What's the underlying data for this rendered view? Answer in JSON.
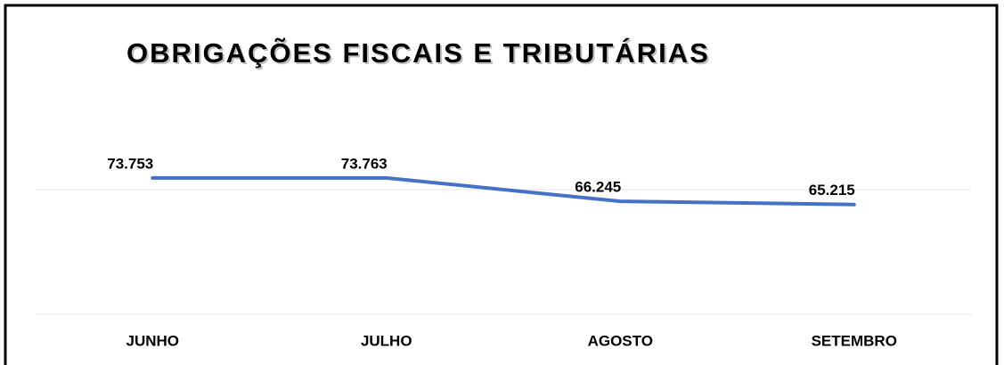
{
  "chart_data": {
    "type": "line",
    "title": "OBRIGAÇÕES FISCAIS E TRIBUTÁRIAS",
    "categories": [
      "JUNHO",
      "JULHO",
      "AGOSTO",
      "SETEMBRO"
    ],
    "series": [
      {
        "name": "OBRIGAÇÕES FISCAIS E TRIBUTÁRIAS",
        "color": "#4472c4",
        "values": [
          73753,
          73763,
          66245,
          65215
        ],
        "value_labels": [
          "73.753",
          "73.763",
          "66.245",
          "65.215"
        ]
      }
    ],
    "ylim": [
      30000,
      80000
    ],
    "yticks": [
      30000,
      70000
    ],
    "grid": true
  }
}
